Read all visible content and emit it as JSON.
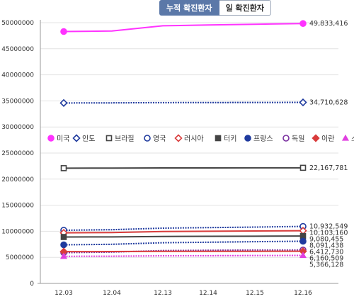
{
  "tabs": [
    {
      "label": "누적 확진환자",
      "active": true
    },
    {
      "label": "일 확진환자",
      "active": false
    }
  ],
  "chart_data": {
    "type": "line",
    "categories": [
      "12.03",
      "12.04",
      "12.13",
      "12.14",
      "12.15",
      "12.16"
    ],
    "ylim": [
      0,
      50000000
    ],
    "y_ticks": [
      "0",
      "5000000",
      "10000000",
      "15000000",
      "20000000",
      "25000000",
      "30000000",
      "35000000",
      "40000000",
      "45000000",
      "50000000"
    ],
    "grid": true,
    "legend_position": "middle",
    "series": [
      {
        "name": "미국",
        "color": "#ff33ff",
        "marker": "circle-filled",
        "line": "solid",
        "width": 2,
        "values": [
          48300000,
          48400000,
          49400000,
          49550000,
          49700000,
          49833416
        ],
        "last_label": "49,833,416"
      },
      {
        "name": "인도",
        "color": "#1f3a9e",
        "marker": "diamond-open",
        "line": "dotted",
        "width": 2,
        "values": [
          34600000,
          34620000,
          34670000,
          34680000,
          34700000,
          34710628
        ],
        "last_label": "34,710,628"
      },
      {
        "name": "브라질",
        "color": "#444444",
        "marker": "square-open",
        "line": "solid",
        "width": 2,
        "values": [
          22100000,
          22110000,
          22140000,
          22150000,
          22160000,
          22167781
        ],
        "last_label": "22,167,781"
      },
      {
        "name": "영국",
        "color": "#1f3a9e",
        "marker": "circle-open",
        "line": "dotted",
        "width": 2,
        "values": [
          10200000,
          10300000,
          10600000,
          10700000,
          10800000,
          10932549
        ],
        "last_label": "10,932,549"
      },
      {
        "name": "러시아",
        "color": "#d93b3b",
        "marker": "diamond-open",
        "line": "solid",
        "width": 2,
        "values": [
          9700000,
          9750000,
          9950000,
          10000000,
          10050000,
          10103160
        ],
        "last_label": "10,103,160"
      },
      {
        "name": "터키",
        "color": "#444444",
        "marker": "square-filled",
        "line": "solid",
        "width": 2,
        "values": [
          8900000,
          8920000,
          9000000,
          9030000,
          9060000,
          9080455
        ],
        "last_label": "9,080,455"
      },
      {
        "name": "프랑스",
        "color": "#1f3a9e",
        "marker": "circle-filled",
        "line": "dotted",
        "width": 2,
        "values": [
          7400000,
          7500000,
          7800000,
          7900000,
          8000000,
          8091438
        ],
        "last_label": "8,091,438"
      },
      {
        "name": "독일",
        "color": "#7a2fa0",
        "marker": "circle-open",
        "line": "dotted",
        "width": 2,
        "values": [
          5900000,
          6000000,
          6300000,
          6350000,
          6400000,
          6412730
        ],
        "last_label": "6,412,730"
      },
      {
        "name": "이란",
        "color": "#d93b3b",
        "marker": "diamond-filled",
        "line": "solid",
        "width": 2,
        "values": [
          6100000,
          6110000,
          6140000,
          6150000,
          6155000,
          6160509
        ],
        "last_label": "6,160,509"
      },
      {
        "name": "스페인",
        "color": "#e040e0",
        "marker": "triangle-filled",
        "line": "dotted",
        "width": 2,
        "values": [
          5200000,
          5220000,
          5300000,
          5320000,
          5350000,
          5366128
        ],
        "last_label": "5,366,128"
      }
    ]
  }
}
